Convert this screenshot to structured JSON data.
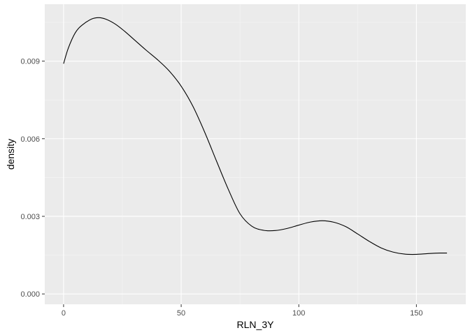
{
  "chart_data": {
    "type": "line",
    "title": "",
    "xlabel": "RLN_3Y",
    "ylabel": "density",
    "xlim": [
      -8,
      171
    ],
    "ylim": [
      -0.0004,
      0.0112
    ],
    "x_ticks": [
      0,
      50,
      100,
      150
    ],
    "x_tick_labels": [
      "0",
      "50",
      "100",
      "150"
    ],
    "y_ticks": [
      0.0,
      0.003,
      0.006,
      0.009
    ],
    "y_tick_labels": [
      "0.000",
      "0.003",
      "0.006",
      "0.009"
    ],
    "grid": true,
    "legend": "none",
    "colors": {
      "panel_background": "#ebebeb",
      "major_grid": "#ffffff",
      "line": "#000000",
      "tick_label": "#4d4d4d",
      "tick_mark": "#333333"
    },
    "series": [
      {
        "x": [
          0,
          2,
          5,
          8,
          12,
          15,
          18,
          22,
          26,
          30,
          35,
          40,
          45,
          50,
          55,
          60,
          65,
          70,
          75,
          80,
          85,
          90,
          95,
          100,
          105,
          110,
          115,
          120,
          125,
          130,
          135,
          140,
          145,
          150,
          155,
          160,
          163
        ],
        "y": [
          0.0089,
          0.0095,
          0.0101,
          0.0104,
          0.01063,
          0.01068,
          0.01062,
          0.01043,
          0.01015,
          0.00983,
          0.00943,
          0.00905,
          0.00861,
          0.00803,
          0.00725,
          0.00625,
          0.00514,
          0.00405,
          0.0031,
          0.00262,
          0.00246,
          0.00245,
          0.00253,
          0.00266,
          0.00278,
          0.00283,
          0.00277,
          0.0026,
          0.00232,
          0.00203,
          0.00178,
          0.00162,
          0.00154,
          0.00153,
          0.00156,
          0.00158,
          0.00158
        ]
      }
    ]
  }
}
